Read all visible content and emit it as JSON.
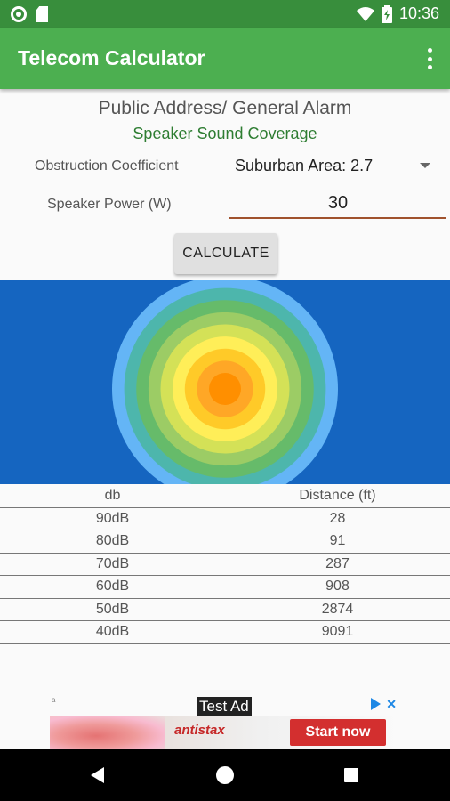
{
  "status_bar": {
    "time": "10:36",
    "icons": [
      "notification-dot-icon",
      "sd-card-icon",
      "wifi-icon",
      "battery-icon"
    ]
  },
  "app_bar": {
    "title": "Telecom Calculator",
    "menu_icon": "more-vertical-icon"
  },
  "page": {
    "heading": "Public Address/ General Alarm",
    "subheading": "Speaker Sound Coverage"
  },
  "form": {
    "obstruction_label": "Obstruction Coefficient",
    "obstruction_value": "Suburban Area: 2.7",
    "power_label": "Speaker Power (W)",
    "power_value": "30",
    "calculate_label": "CALCULATE"
  },
  "coverage": {
    "background": "#1565c0",
    "rings": [
      "#64b5f6",
      "#4db6ac",
      "#66bb6a",
      "#9ccc65",
      "#d4e157",
      "#ffee58",
      "#ffca28",
      "#ffa726",
      "#ff8f00"
    ]
  },
  "table": {
    "headers": [
      "db",
      "Distance (ft)"
    ],
    "rows": [
      {
        "db": "90dB",
        "distance": "28"
      },
      {
        "db": "80dB",
        "distance": "91"
      },
      {
        "db": "70dB",
        "distance": "287"
      },
      {
        "db": "60dB",
        "distance": "908"
      },
      {
        "db": "50dB",
        "distance": "2874"
      },
      {
        "db": "40dB",
        "distance": "9091"
      }
    ]
  },
  "ad": {
    "marker": "a",
    "label": "Test Ad",
    "brand": "antistax",
    "cta": "Start now"
  },
  "nav_bar": {
    "icons": [
      "back-icon",
      "home-icon",
      "recent-apps-icon"
    ]
  }
}
